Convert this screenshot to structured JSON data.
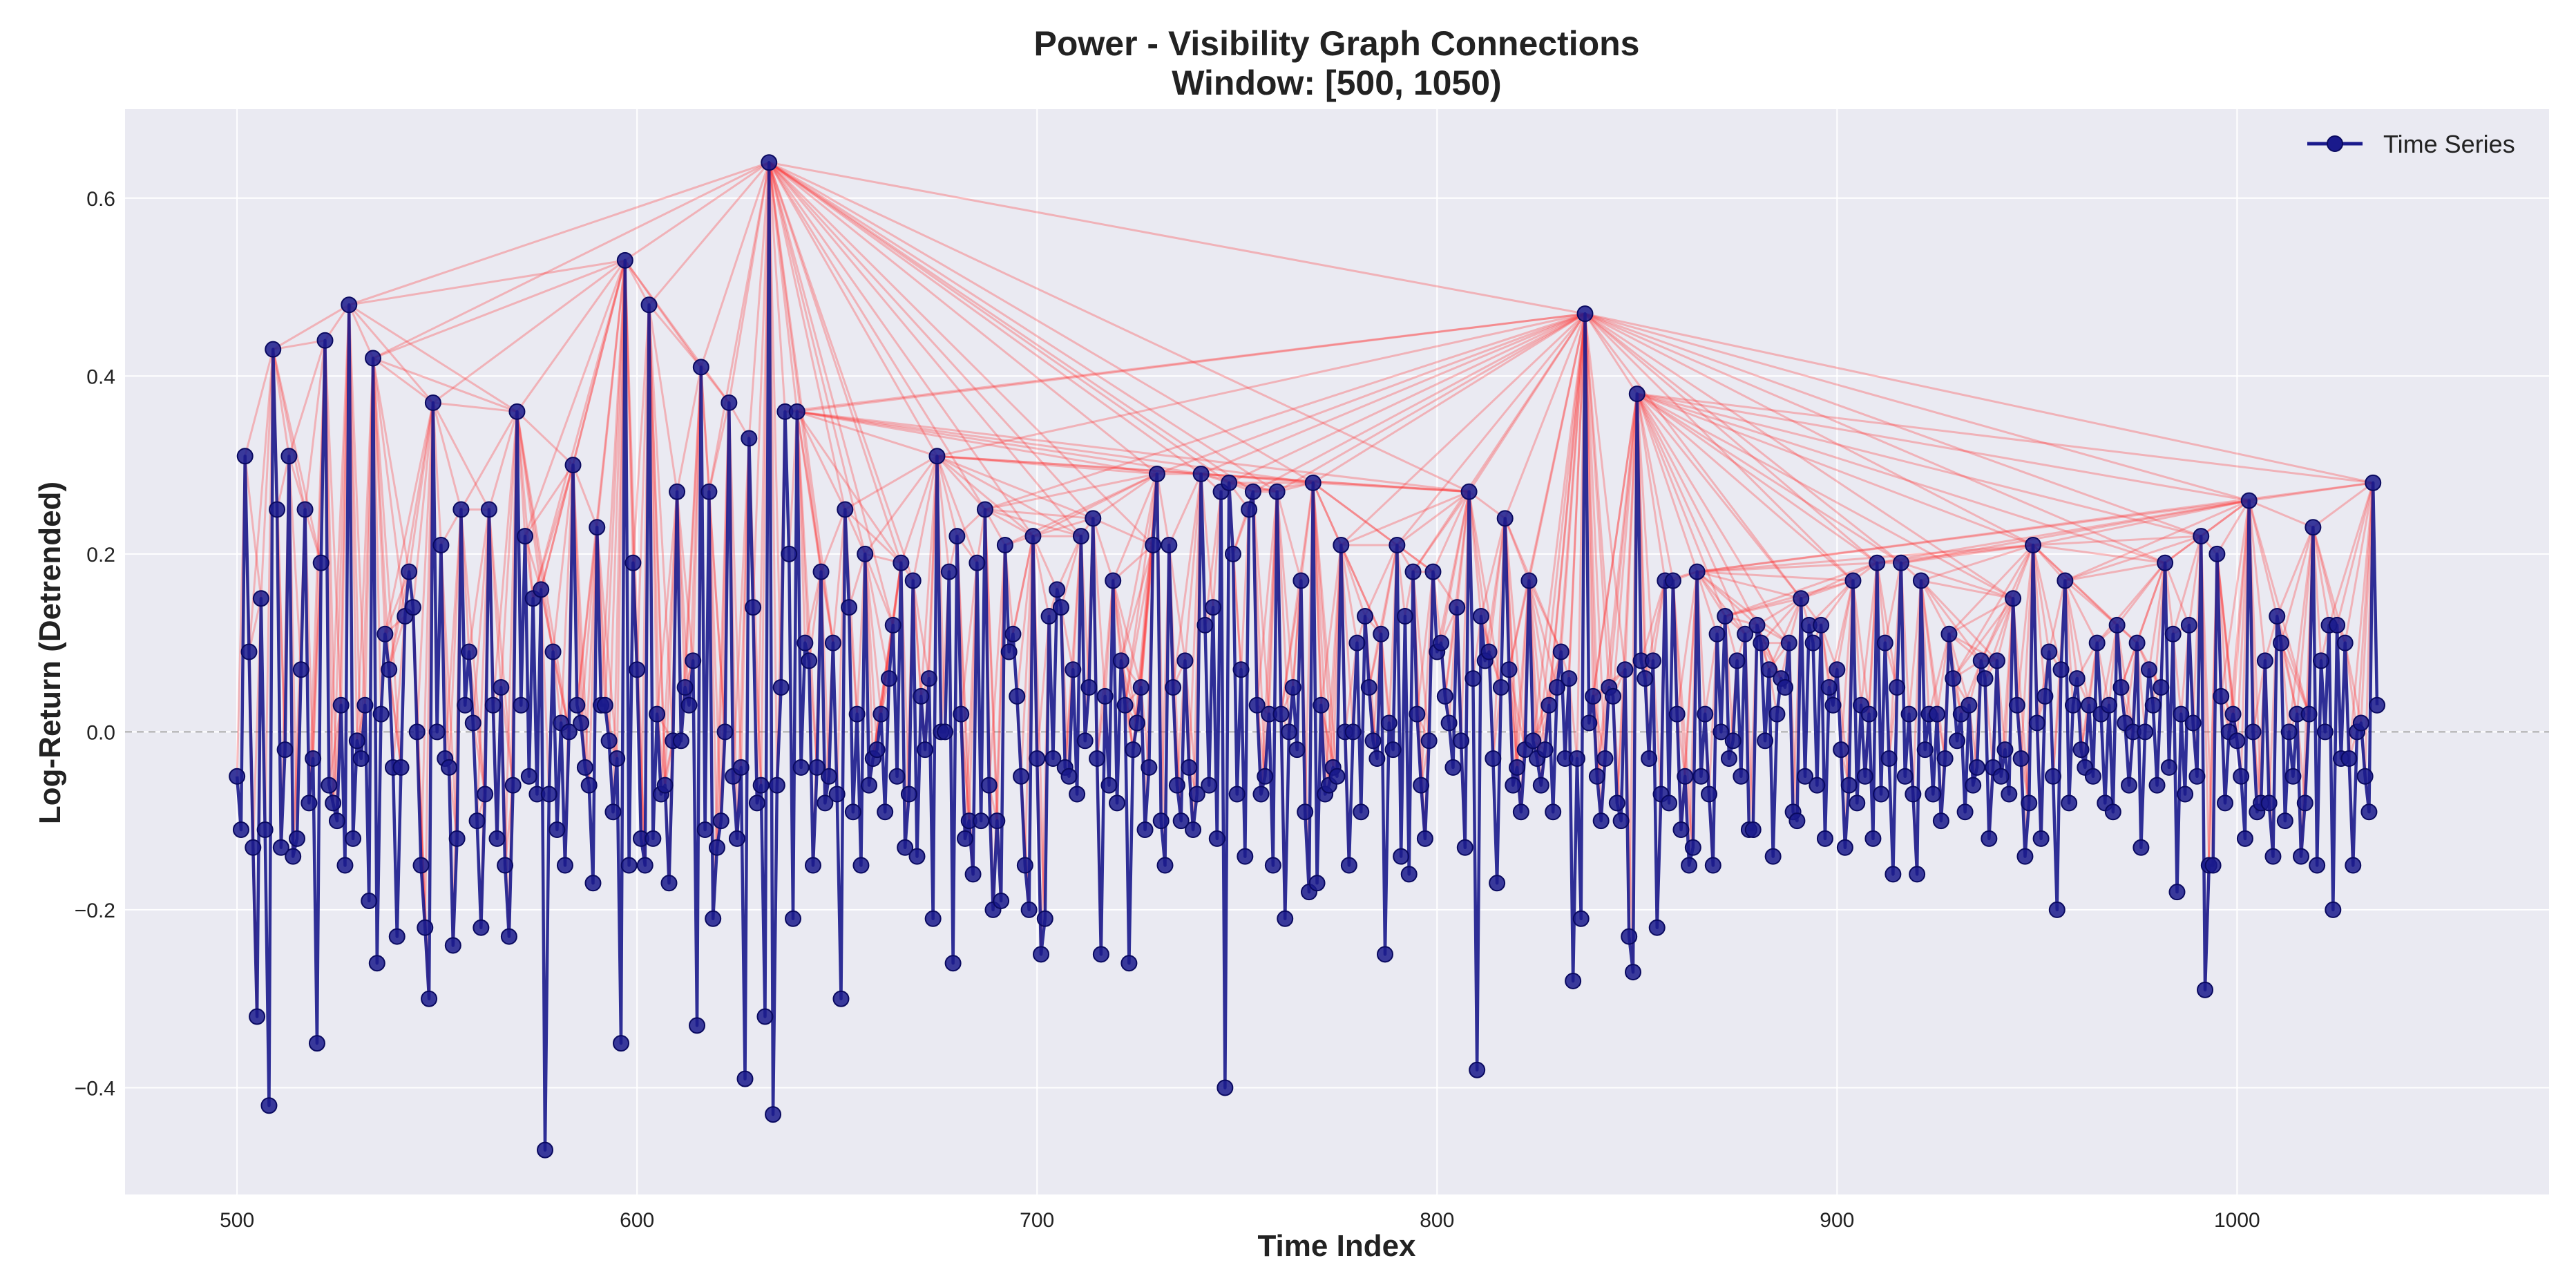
{
  "chart_data": {
    "type": "line",
    "title_line1": "Power - Visibility Graph Connections",
    "title_line2": "Window: [500, 1050)",
    "xlabel": "Time Index",
    "ylabel": "Log-Return (Detrended)",
    "xlim": [
      472,
      1078
    ],
    "ylim": [
      -0.52,
      0.7
    ],
    "x_ticks": [
      500,
      600,
      700,
      800,
      900,
      1000
    ],
    "x_tick_labels": [
      "500",
      "600",
      "700",
      "800",
      "900",
      "1000"
    ],
    "y_ticks": [
      -0.4,
      -0.2,
      0.0,
      0.2,
      0.4,
      0.6
    ],
    "y_tick_labels": [
      "−0.4",
      "−0.2",
      "0.0",
      "0.2",
      "0.4",
      "0.6"
    ],
    "grid": true,
    "legend": {
      "position": "top-right",
      "entries": [
        "Time Series"
      ]
    },
    "reference_line": {
      "y": 0.0,
      "style": "dashed"
    },
    "colors": {
      "series": "#1a1a8c",
      "marker_edge": "#0a0a60",
      "edges": "#ff3333",
      "axes_bg": "#eaeaf2",
      "grid": "#ffffff",
      "refline": "#aaaaaa",
      "text": "#222222"
    },
    "series": [
      {
        "name": "Time Series",
        "x_start": 500,
        "values": [
          -0.05,
          -0.11,
          0.31,
          0.09,
          -0.13,
          -0.32,
          0.15,
          -0.11,
          -0.42,
          0.43,
          0.25,
          -0.13,
          -0.02,
          0.31,
          -0.14,
          -0.12,
          0.07,
          0.25,
          -0.08,
          -0.03,
          -0.35,
          0.19,
          0.44,
          -0.06,
          -0.08,
          -0.1,
          0.03,
          -0.15,
          0.48,
          -0.12,
          -0.01,
          -0.03,
          0.03,
          -0.19,
          0.42,
          -0.26,
          0.02,
          0.11,
          0.07,
          -0.04,
          -0.23,
          -0.04,
          0.13,
          0.18,
          0.14,
          0.0,
          -0.15,
          -0.22,
          -0.3,
          0.37,
          0.0,
          0.21,
          -0.03,
          -0.04,
          -0.24,
          -0.12,
          0.25,
          0.03,
          0.09,
          0.01,
          -0.1,
          -0.22,
          -0.07,
          0.25,
          0.03,
          -0.12,
          0.05,
          -0.15,
          -0.23,
          -0.06,
          0.36,
          0.03,
          0.22,
          -0.05,
          0.15,
          -0.07,
          0.16,
          -0.47,
          -0.07,
          0.09,
          -0.11,
          0.01,
          -0.15,
          0.0,
          0.3,
          0.03,
          0.01,
          -0.04,
          -0.06,
          -0.17,
          0.23,
          0.03,
          0.03,
          -0.01,
          -0.09,
          -0.03,
          -0.35,
          0.53,
          -0.15,
          0.19,
          0.07,
          -0.12,
          -0.15,
          0.48,
          -0.12,
          0.02,
          -0.07,
          -0.06,
          -0.17,
          -0.01,
          0.27,
          -0.01,
          0.05,
          0.03,
          0.08,
          -0.33,
          0.41,
          -0.11,
          0.27,
          -0.21,
          -0.13,
          -0.1,
          0.0,
          0.37,
          -0.05,
          -0.12,
          -0.04,
          -0.39,
          0.33,
          0.14,
          -0.08,
          -0.06,
          -0.32,
          0.64,
          -0.43,
          -0.06,
          0.05,
          0.36,
          0.2,
          -0.21,
          0.36,
          -0.04,
          0.1,
          0.08,
          -0.15,
          -0.04,
          0.18,
          -0.08,
          -0.05,
          0.1,
          -0.07,
          -0.3,
          0.25,
          0.14,
          -0.09,
          0.02,
          -0.15,
          0.2,
          -0.06,
          -0.03,
          -0.02,
          0.02,
          -0.09,
          0.06,
          0.12,
          -0.05,
          0.19,
          -0.13,
          -0.07,
          0.17,
          -0.14,
          0.04,
          -0.02,
          0.06,
          -0.21,
          0.31,
          0.0,
          0.0,
          0.18,
          -0.26,
          0.22,
          0.02,
          -0.12,
          -0.1,
          -0.16,
          0.19,
          -0.1,
          0.25,
          -0.06,
          -0.2,
          -0.1,
          -0.19,
          0.21,
          0.09,
          0.11,
          0.04,
          -0.05,
          -0.15,
          -0.2,
          0.22,
          -0.03,
          -0.25,
          -0.21,
          0.13,
          -0.03,
          0.16,
          0.14,
          -0.04,
          -0.05,
          0.07,
          -0.07,
          0.22,
          -0.01,
          0.05,
          0.24,
          -0.03,
          -0.25,
          0.04,
          -0.06,
          0.17,
          -0.08,
          0.08,
          0.03,
          -0.26,
          -0.02,
          0.01,
          0.05,
          -0.11,
          -0.04,
          0.21,
          0.29,
          -0.1,
          -0.15,
          0.21,
          0.05,
          -0.06,
          -0.1,
          0.08,
          -0.04,
          -0.11,
          -0.07,
          0.29,
          0.12,
          -0.06,
          0.14,
          -0.12,
          0.27,
          -0.4,
          0.28,
          0.2,
          -0.07,
          0.07,
          -0.14,
          0.25,
          0.27,
          0.03,
          -0.07,
          -0.05,
          0.02,
          -0.15,
          0.27,
          0.02,
          -0.21,
          0.0,
          0.05,
          -0.02,
          0.17,
          -0.09,
          -0.18,
          0.28,
          -0.17,
          0.03,
          -0.07,
          -0.06,
          -0.04,
          -0.05,
          0.21,
          0.0,
          -0.15,
          0.0,
          0.1,
          -0.09,
          0.13,
          0.05,
          -0.01,
          -0.03,
          0.11,
          -0.25,
          0.01,
          -0.02,
          0.21,
          -0.14,
          0.13,
          -0.16,
          0.18,
          0.02,
          -0.06,
          -0.12,
          -0.01,
          0.18,
          0.09,
          0.1,
          0.04,
          0.01,
          -0.04,
          0.14,
          -0.01,
          -0.13,
          0.27,
          0.06,
          -0.38,
          0.13,
          0.08,
          0.09,
          -0.03,
          -0.17,
          0.05,
          0.24,
          0.07,
          -0.06,
          -0.04,
          -0.09,
          -0.02,
          0.17,
          -0.01,
          -0.03,
          -0.06,
          -0.02,
          0.03,
          -0.09,
          0.05,
          0.09,
          -0.03,
          0.06,
          -0.28,
          -0.03,
          -0.21,
          0.47,
          0.01,
          0.04,
          -0.05,
          -0.1,
          -0.03,
          0.05,
          0.04,
          -0.08,
          -0.1,
          0.07,
          -0.23,
          -0.27,
          0.38,
          0.08,
          0.06,
          -0.03,
          0.08,
          -0.22,
          -0.07,
          0.17,
          -0.08,
          0.17,
          0.02,
          -0.11,
          -0.05,
          -0.15,
          -0.13,
          0.18,
          -0.05,
          0.02,
          -0.07,
          -0.15,
          0.11,
          0.0,
          0.13,
          -0.03,
          -0.01,
          0.08,
          -0.05,
          0.11,
          -0.11,
          -0.11,
          0.12,
          0.1,
          -0.01,
          0.07,
          -0.14,
          0.02,
          0.06,
          0.05,
          0.1,
          -0.09,
          -0.1,
          0.15,
          -0.05,
          0.12,
          0.1,
          -0.06,
          0.12,
          -0.12,
          0.05,
          0.03,
          0.07,
          -0.02,
          -0.13,
          -0.06,
          0.17,
          -0.08,
          0.03,
          -0.05,
          0.02,
          -0.12,
          0.19,
          -0.07,
          0.1,
          -0.03,
          -0.16,
          0.05,
          0.19,
          -0.05,
          0.02,
          -0.07,
          -0.16,
          0.17,
          -0.02,
          0.02,
          -0.07,
          0.02,
          -0.1,
          -0.03,
          0.11,
          0.06,
          -0.01,
          0.02,
          -0.09,
          0.03,
          -0.06,
          -0.04,
          0.08,
          0.06,
          -0.12,
          -0.04,
          0.08,
          -0.05,
          -0.02,
          -0.07,
          0.15,
          0.03,
          -0.03,
          -0.14,
          -0.08,
          0.21,
          0.01,
          -0.12,
          0.04,
          0.09,
          -0.05,
          -0.2,
          0.07,
          0.17,
          -0.08,
          0.03,
          0.06,
          -0.02,
          -0.04,
          0.03,
          -0.05,
          0.1,
          0.02,
          -0.08,
          0.03,
          -0.09,
          0.12,
          0.05,
          0.01,
          -0.06,
          0.0,
          0.1,
          -0.13,
          0.0,
          0.07,
          0.03,
          -0.06,
          0.05,
          0.19,
          -0.04,
          0.11,
          -0.18,
          0.02,
          -0.07,
          0.12,
          0.01,
          -0.05,
          0.22,
          -0.29,
          -0.15,
          -0.15,
          0.2,
          0.04,
          -0.08,
          0.0,
          0.02,
          -0.01,
          -0.05,
          -0.12,
          0.26,
          0.0,
          -0.09,
          -0.08,
          0.08,
          -0.08,
          -0.14,
          0.13,
          0.1,
          -0.1,
          0.0,
          -0.05,
          0.02,
          -0.14,
          -0.08,
          0.02,
          0.23,
          -0.15,
          0.08,
          0.0,
          0.12,
          -0.2,
          0.12,
          -0.03,
          0.1,
          -0.03,
          -0.15,
          0.0,
          0.01,
          -0.05,
          -0.09,
          0.28,
          0.03
        ]
      }
    ]
  }
}
